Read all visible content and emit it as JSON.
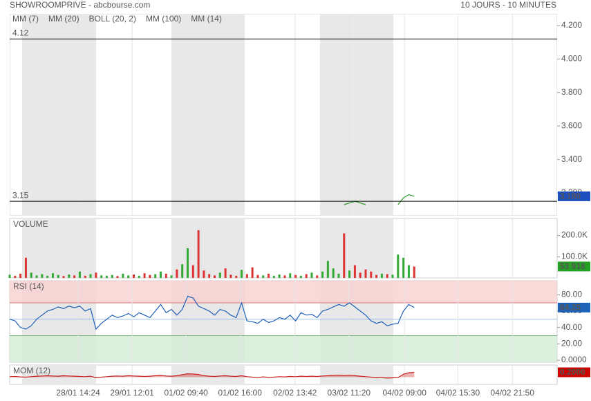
{
  "header": {
    "title": "SHOWROOMPRIVE - abcbourse.com",
    "period": "10 JOURS - 10 MINUTES"
  },
  "legend": [
    {
      "name": "MM (7)",
      "color": "#2b3fd6"
    },
    {
      "name": "MM (20)",
      "color": "#e03030"
    },
    {
      "name": "BOLL (20, 2)",
      "color": "#f0a050"
    },
    {
      "name": "MM (100)",
      "color": "#22aa22"
    },
    {
      "name": "MM (14)",
      "color": "#333333"
    }
  ],
  "chart_data": [
    {
      "type": "line",
      "name": "price",
      "color": "#2a9a2a",
      "xlim": [
        0,
        101.5
      ],
      "xticks": [
        {
          "value": 12.7,
          "label": "28/01 14:24"
        },
        {
          "value": 22.7,
          "label": "29/01 12:01"
        },
        {
          "value": 32.7,
          "label": "01/02 09:40"
        },
        {
          "value": 42.7,
          "label": "01/02 16:00"
        },
        {
          "value": 52.9,
          "label": "02/02 13:42"
        },
        {
          "value": 62.9,
          "label": "03/02 11:20"
        },
        {
          "value": 73.2,
          "label": "04/02 09:00"
        },
        {
          "value": 83.1,
          "label": "04/02 15:30"
        },
        {
          "value": 93.2,
          "label": "04/02 21:50"
        }
      ],
      "x": [
        62,
        63,
        64,
        65,
        66,
        67,
        72,
        73,
        74,
        75
      ],
      "values": [
        3.13,
        3.14,
        3.15,
        3.14,
        3.13,
        null,
        3.13,
        3.17,
        3.19,
        3.18
      ],
      "last_label": "3.180",
      "last_color": "#1f4fbf",
      "hlines": [
        4.12,
        3.15
      ],
      "ylim": [
        3.064,
        4.27
      ],
      "yticks": [
        {
          "value": 4.2,
          "label": "4.200"
        },
        {
          "value": 4.0,
          "label": "4.000"
        },
        {
          "value": 3.8,
          "label": "3.800"
        },
        {
          "value": 3.6,
          "label": "3.600"
        },
        {
          "value": 3.4,
          "label": "3.400"
        },
        {
          "value": 3.2,
          "label": "3.200"
        }
      ]
    },
    {
      "type": "bar",
      "name": "VOLUME",
      "color": "#33aa33",
      "down_color": "#dd3333",
      "last_color": "#22a022",
      "values": [
        15000,
        10000,
        20000,
        95000,
        25000,
        12000,
        18000,
        10000,
        22000,
        14000,
        9000,
        16000,
        12000,
        30000,
        10000,
        18000,
        25000,
        12000,
        10000,
        14000,
        9000,
        20000,
        12000,
        16000,
        10000,
        22000,
        14000,
        18000,
        30000,
        20000,
        12000,
        40000,
        65000,
        140000,
        60000,
        225000,
        35000,
        18000,
        12000,
        25000,
        45000,
        15000,
        10000,
        38000,
        18000,
        50000,
        14000,
        12000,
        20000,
        10000,
        16000,
        12000,
        22000,
        14000,
        10000,
        18000,
        25000,
        12000,
        30000,
        80000,
        45000,
        20000,
        210000,
        35000,
        60000,
        25000,
        40000,
        30000,
        14000,
        20000,
        18000,
        15000,
        110000,
        95000,
        60000,
        53918
      ],
      "last_label": "53 918",
      "ylim": [
        0,
        280000
      ],
      "yticks": [
        {
          "value": 200000,
          "label": "200.0K"
        },
        {
          "value": 100000,
          "label": "100.0K"
        }
      ]
    },
    {
      "type": "line",
      "name": "RSI (14)",
      "color": "#1f5fb8",
      "last_color": "#1f63b8",
      "values": [
        50,
        48,
        40,
        38,
        42,
        50,
        55,
        60,
        62,
        65,
        63,
        66,
        64,
        66,
        60,
        63,
        38,
        45,
        50,
        55,
        52,
        54,
        57,
        53,
        58,
        55,
        52,
        60,
        68,
        58,
        62,
        55,
        62,
        78,
        76,
        66,
        63,
        60,
        55,
        62,
        60,
        55,
        52,
        70,
        48,
        47,
        45,
        50,
        46,
        48,
        52,
        50,
        55,
        48,
        58,
        55,
        56,
        52,
        60,
        62,
        65,
        68,
        66,
        70,
        65,
        60,
        55,
        48,
        45,
        47,
        42,
        44,
        45,
        60,
        68,
        64.25
      ],
      "last_label": "64.25",
      "bands": [
        {
          "from": 70,
          "to": 100,
          "color": "#f9d0d0",
          "line": "#e07070"
        },
        {
          "from": -10,
          "to": 30,
          "color": "#d5ecd5",
          "line": "#70b070"
        }
      ],
      "midline": 50,
      "ylim": [
        -2.5,
        97
      ],
      "yticks": [
        {
          "value": 80,
          "label": "80.00"
        },
        {
          "value": 60,
          "label": "60.00"
        },
        {
          "value": 40,
          "label": "40.00"
        },
        {
          "value": 20,
          "label": "20.00"
        },
        {
          "value": 0,
          "label": "0.0000"
        }
      ]
    },
    {
      "type": "line",
      "name": "MOM (12)",
      "color": "#c82020",
      "area": true,
      "last_color": "#cc0000",
      "values": [
        0.02,
        0.03,
        0.01,
        0,
        0.02,
        0.04,
        0.05,
        0.06,
        0.05,
        0.04,
        0.06,
        0.05,
        0.04,
        0.03,
        0.02,
        0.04,
        -0.03,
        0,
        0.02,
        0.04,
        0.05,
        0.04,
        0.06,
        0.05,
        0.04,
        0.03,
        0.04,
        0.06,
        0.07,
        0.05,
        0.04,
        0.06,
        0.1,
        0.14,
        0.13,
        0.11,
        0.06,
        0.04,
        0.03,
        0.05,
        0.06,
        0.04,
        0.03,
        0.06,
        0.02,
        0,
        -0.02,
        0.01,
        -0.01,
        0,
        0.02,
        0.01,
        0.03,
        0.02,
        0.04,
        0.03,
        0.04,
        0.03,
        0.05,
        0.06,
        0.07,
        0.08,
        0.07,
        0.08,
        0.06,
        0.04,
        0.02,
        0,
        -0.03,
        -0.02,
        -0.04,
        -0.03,
        -0.02,
        0.12,
        0.18,
        0.2
      ],
      "last_label": "0.2000",
      "ylim": [
        -0.3,
        0.5
      ],
      "yticks": []
    }
  ]
}
